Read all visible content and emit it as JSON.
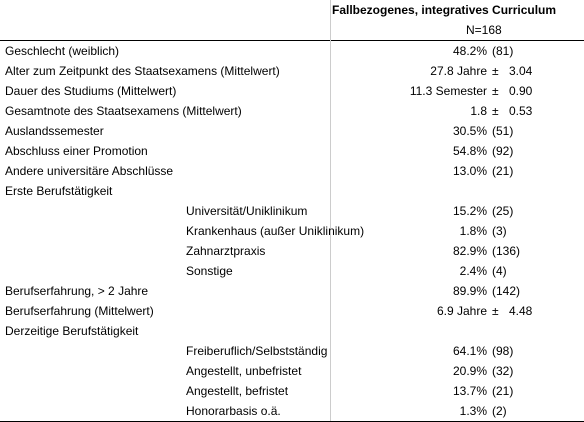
{
  "header": {
    "title": "Fallbezogenes, integratives Curriculum",
    "n": "N=168"
  },
  "rows": [
    {
      "label": "Geschlecht (weiblich)",
      "value": "48.2%",
      "n": "(81)"
    },
    {
      "label": "Alter zum Zeitpunkt des Staatsexamens (Mittelwert)",
      "value": "27.8 Jahre",
      "pm": "±",
      "sd": "3.04"
    },
    {
      "label": "Dauer des Studiums (Mittelwert)",
      "value": "11.3 Semester",
      "pm": "±",
      "sd": "0.90"
    },
    {
      "label": "Gesamtnote des Staatsexamens (Mittelwert)",
      "value": "1.8",
      "pm": "±",
      "sd": "0.53"
    },
    {
      "label": "Auslandssemester",
      "value": "30.5%",
      "n": "(51)"
    },
    {
      "label": "Abschluss einer Promotion",
      "value": "54.8%",
      "n": "(92)"
    },
    {
      "label": "Andere universitäre Abschlüsse",
      "value": "13.0%",
      "n": "(21)"
    },
    {
      "label": "Erste Berufstätigkeit",
      "items": [
        {
          "label": "Universität/Uniklinikum",
          "value": "15.2%",
          "n": "(25)"
        },
        {
          "label": "Krankenhaus (außer Uniklinikum)",
          "value": "1.8%",
          "n": "(3)"
        },
        {
          "label": "Zahnarztpraxis",
          "value": "82.9%",
          "n": "(136)"
        },
        {
          "label": "Sonstige",
          "value": "2.4%",
          "n": "(4)"
        }
      ]
    },
    {
      "label": "Berufserfahrung, > 2 Jahre",
      "value": "89.9%",
      "n": "(142)"
    },
    {
      "label": "Berufserfahrung (Mittelwert)",
      "value": "6.9 Jahre",
      "pm": "±",
      "sd": "4.48"
    },
    {
      "label": "Derzeitige Berufstätigkeit",
      "items": [
        {
          "label": "Freiberuflich/Selbstständig",
          "value": "64.1%",
          "n": "(98)"
        },
        {
          "label": "Angestellt, unbefristet",
          "value": "20.9%",
          "n": "(32)"
        },
        {
          "label": "Angestellt, befristet",
          "value": "13.7%",
          "n": "(21)"
        },
        {
          "label": "Honorarbasis o.ä.",
          "value": "1.3%",
          "n": "(2)"
        }
      ]
    }
  ]
}
